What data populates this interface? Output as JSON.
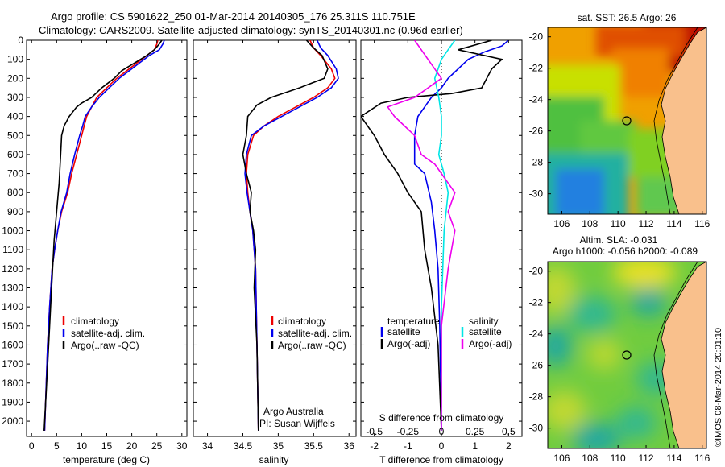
{
  "header": {
    "line1": "Argo profile: CS 5901622_250 01-Mar-2014 20140305_176 25.311S 110.751E",
    "line2": "Climatology: CARS2009. Satellite-adjusted climatology: synTS_20140301.nc (0.96d earlier)"
  },
  "colors": {
    "climatology": "#ee0000",
    "satellite": "#0000ee",
    "argo": "#000000",
    "salinity_sat": "#00e5e5",
    "salinity_argo": "#ee00ee",
    "land": "#f9c08c"
  },
  "chart_data": [
    {
      "type": "line",
      "panel": "temperature",
      "xlabel": "temperature (deg C)",
      "ylabel": "",
      "xlim": [
        -1,
        31
      ],
      "ylim": [
        0,
        2080
      ],
      "y_inverted": true,
      "xticks": [
        "0",
        "5",
        "10",
        "15",
        "20",
        "25",
        "30"
      ],
      "yticks": [
        "0",
        "100",
        "200",
        "300",
        "400",
        "500",
        "600",
        "700",
        "800",
        "900",
        "1000",
        "1100",
        "1200",
        "1300",
        "1400",
        "1500",
        "1600",
        "1700",
        "1800",
        "1900",
        "2000"
      ],
      "legend": [
        "climatology",
        "satellite-adj. clim.",
        "Argo(..raw -QC)"
      ],
      "series": [
        {
          "name": "climatology",
          "x": [
            25.2,
            25,
            24.5,
            23,
            21,
            19,
            17,
            15,
            13,
            12,
            11,
            10.5,
            10,
            9,
            8,
            7.2,
            6,
            5.2,
            4.6,
            4.1,
            3.6,
            3.2,
            2.6
          ],
          "y": [
            0,
            20,
            50,
            80,
            120,
            160,
            200,
            250,
            300,
            350,
            400,
            450,
            500,
            600,
            700,
            800,
            900,
            1000,
            1100,
            1200,
            1400,
            1600,
            2050
          ]
        },
        {
          "name": "satellite-adj. clim.",
          "x": [
            26.5,
            26.2,
            25.5,
            23.5,
            21.5,
            19.5,
            17.5,
            15.5,
            13.5,
            12,
            10.7,
            10.2,
            9.6,
            8.6,
            7.7,
            7,
            5.9,
            5.2,
            4.6,
            4.1,
            3.6,
            3.2,
            2.6
          ],
          "y": [
            0,
            20,
            50,
            80,
            120,
            160,
            200,
            250,
            300,
            350,
            400,
            450,
            500,
            600,
            700,
            800,
            900,
            1000,
            1100,
            1200,
            1400,
            1600,
            2050
          ]
        },
        {
          "name": "Argo(..raw -QC)",
          "x": [
            26,
            25.5,
            24.5,
            23,
            20.5,
            18,
            16.5,
            14,
            12,
            10,
            9,
            7.5,
            6.5,
            6,
            5.8,
            5.5,
            5,
            4.5,
            4.2,
            3.8,
            3.4,
            2.5
          ],
          "y": [
            0,
            20,
            50,
            80,
            120,
            160,
            200,
            250,
            300,
            330,
            350,
            400,
            450,
            500,
            600,
            750,
            900,
            1050,
            1200,
            1400,
            1600,
            2050
          ]
        }
      ]
    },
    {
      "type": "line",
      "panel": "salinity",
      "xlabel": "salinity",
      "xlim": [
        33.8,
        36.1
      ],
      "ylim": [
        0,
        2080
      ],
      "y_inverted": true,
      "xticks": [
        "34",
        "34.5",
        "35",
        "35.5",
        "36"
      ],
      "legend": [
        "climatology",
        "satellite-adj. clim.",
        "Argo(..raw -QC)"
      ],
      "annotation": [
        "Argo Australia",
        "PI: Susan Wijffels"
      ],
      "series": [
        {
          "name": "climatology",
          "x": [
            35.45,
            35.5,
            35.6,
            35.75,
            35.8,
            35.7,
            35.5,
            35.25,
            35,
            34.8,
            34.65,
            34.57,
            34.55,
            34.57,
            34.6,
            34.64,
            34.68,
            34.7,
            34.72
          ],
          "y": [
            0,
            40,
            80,
            150,
            200,
            250,
            300,
            350,
            400,
            450,
            500,
            600,
            700,
            800,
            900,
            1000,
            1200,
            1600,
            2050
          ]
        },
        {
          "name": "satellite-adj. clim.",
          "x": [
            35.55,
            35.6,
            35.7,
            35.82,
            35.85,
            35.75,
            35.55,
            35.3,
            35.05,
            34.8,
            34.62,
            34.55,
            34.53,
            34.56,
            34.6,
            34.64,
            34.68,
            34.7,
            34.72
          ],
          "y": [
            0,
            40,
            80,
            150,
            200,
            250,
            300,
            350,
            400,
            450,
            500,
            600,
            700,
            800,
            900,
            1000,
            1200,
            1600,
            2050
          ]
        },
        {
          "name": "Argo(..raw -QC)",
          "x": [
            35.4,
            35.5,
            35.62,
            35.7,
            35.65,
            35.3,
            34.9,
            34.7,
            34.57,
            34.55,
            34.5,
            34.55,
            34.62,
            34.6,
            34.65,
            34.68,
            34.66,
            34.7,
            34.72
          ],
          "y": [
            0,
            40,
            80,
            150,
            200,
            250,
            300,
            340,
            400,
            500,
            600,
            700,
            800,
            900,
            1000,
            1100,
            1300,
            1600,
            2050
          ]
        }
      ]
    },
    {
      "type": "line",
      "panel": "differences",
      "xlabel": "T difference from climatology",
      "xlabel_top": "S difference from climatology",
      "xlim": [
        -2.4,
        2.4
      ],
      "ylim": [
        0,
        2080
      ],
      "y_inverted": true,
      "xticks": [
        "-2",
        "-1",
        "0",
        "1",
        "2"
      ],
      "sticks": [
        "-0.5",
        "-0.25",
        "0",
        "0.25",
        "0.5"
      ],
      "legend_headers": [
        "temperature",
        "salinity"
      ],
      "legend": [
        "satellite",
        "Argo(-adj)",
        "satellite",
        "Argo(-adj)"
      ],
      "series": [
        {
          "name": "temperature satellite",
          "x": [
            2,
            1.8,
            1.3,
            0.8,
            0.5,
            0.2,
            0,
            -0.3,
            -0.5,
            -0.7,
            -0.8,
            -0.8,
            -0.5,
            -0.3,
            -0.2,
            -0.1,
            -0.05,
            0
          ],
          "y": [
            0,
            30,
            60,
            100,
            150,
            200,
            250,
            300,
            350,
            400,
            500,
            650,
            700,
            850,
            1000,
            1200,
            1500,
            2050
          ]
        },
        {
          "name": "temperature Argo(-adj)",
          "x": [
            1.5,
            0.5,
            1.8,
            1.5,
            1.2,
            0.3,
            -1,
            -1.8,
            -2.4,
            -2,
            -1.7,
            -1.3,
            -1,
            -0.6,
            -0.5,
            -0.3,
            -0.1,
            0
          ],
          "y": [
            0,
            50,
            100,
            150,
            250,
            280,
            300,
            330,
            400,
            500,
            600,
            700,
            800,
            900,
            1100,
            1300,
            1600,
            2050
          ]
        },
        {
          "name": "salinity satellite",
          "x": [
            0.1,
            0.05,
            0,
            -0.05,
            -0.02,
            0,
            0,
            -0.02,
            0.02,
            0.05,
            0.02,
            0,
            0
          ],
          "y": [
            0,
            50,
            100,
            200,
            300,
            400,
            500,
            600,
            700,
            800,
            1000,
            1400,
            2050
          ]
        },
        {
          "name": "salinity Argo(-adj)",
          "x": [
            -0.2,
            -0.15,
            -0.1,
            0,
            -0.2,
            -0.4,
            -0.35,
            -0.2,
            -0.15,
            -0.05,
            0,
            0.1,
            0.05,
            0.1,
            0.05,
            0,
            0
          ],
          "y": [
            0,
            50,
            100,
            200,
            300,
            350,
            400,
            500,
            600,
            650,
            700,
            800,
            900,
            1000,
            1200,
            1500,
            2050
          ]
        }
      ]
    },
    {
      "type": "heatmap",
      "panel": "sst_map",
      "title": "sat. SST: 26.5 Argo: 26",
      "xticks": [
        "106",
        "108",
        "110",
        "112",
        "114",
        "116"
      ],
      "yticks": [
        "-20",
        "-22",
        "-24",
        "-26",
        "-28",
        "-30"
      ],
      "xlim": [
        105,
        116.3
      ],
      "ylim": [
        -31.3,
        -19.4
      ],
      "marker": {
        "lon": 110.75,
        "lat": -25.31
      }
    },
    {
      "type": "heatmap",
      "panel": "sla_map",
      "title": "Altim. SLA: -0.031",
      "subtitle": "Argo h1000: -0.056 h2000: -0.089",
      "xticks": [
        "106",
        "108",
        "110",
        "112",
        "114",
        "116"
      ],
      "yticks": [
        "-20",
        "-22",
        "-24",
        "-26",
        "-28",
        "-30"
      ],
      "xlim": [
        105,
        116.3
      ],
      "ylim": [
        -31.3,
        -19.4
      ],
      "marker": {
        "lon": 110.75,
        "lat": -25.31
      }
    }
  ],
  "side_label": "©IMOS 08-Mar-2014 20:01:10"
}
